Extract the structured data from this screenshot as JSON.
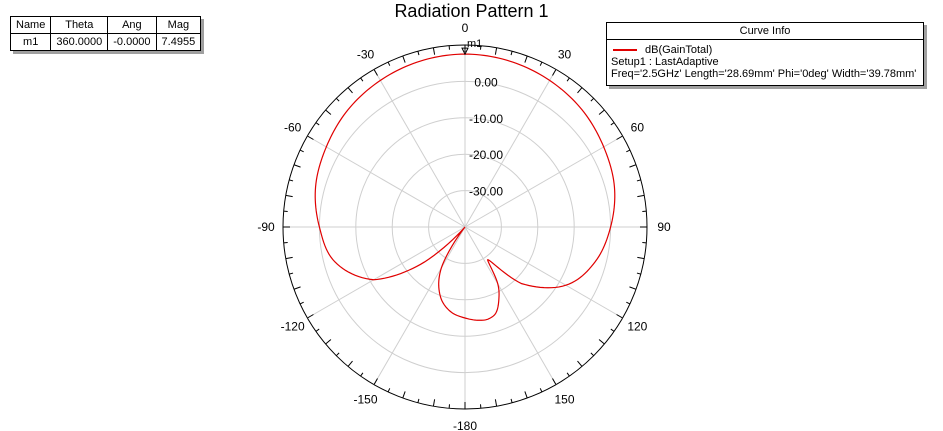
{
  "title": "Radiation Pattern 1",
  "marker_table": {
    "headers": [
      "Name",
      "Theta",
      "Ang",
      "Mag"
    ],
    "rows": [
      [
        "m1",
        "360.0000",
        "-0.0000",
        "7.4955"
      ]
    ]
  },
  "marker_label": "m1",
  "legend": {
    "header": "Curve Info",
    "trace_name": "dB(GainTotal)",
    "setup": "Setup1 : LastAdaptive",
    "params": "Freq='2.5GHz' Length='28.69mm' Phi='0deg' Width='39.78mm'"
  },
  "chart_data": {
    "type": "line",
    "coordinate_system": "polar",
    "title": "Radiation Pattern 1",
    "radial_range_db": [
      -40,
      10
    ],
    "radial_ticks": [
      0,
      -10,
      -20,
      -30
    ],
    "radial_tick_labels": [
      "0.00",
      "-10.00",
      "-20.00",
      "-30.00"
    ],
    "angular_ticks": [
      0,
      30,
      60,
      90,
      120,
      150,
      180,
      -150,
      -120,
      -90,
      -60,
      -30
    ],
    "angular_tick_labels": [
      "0",
      "30",
      "60",
      "90",
      "120",
      "150",
      "-180",
      "-150",
      "-120",
      "-90",
      "-60",
      "-30"
    ],
    "grid": true,
    "legend_position": "top-right",
    "series": [
      {
        "name": "dB(GainTotal)",
        "color": "#e00000",
        "theta_deg": [
          0,
          15,
          30,
          45,
          60,
          75,
          90,
          105,
          120,
          135,
          145,
          150,
          155,
          160,
          165,
          170,
          180,
          -170,
          -160,
          -150,
          -140,
          -130,
          -120,
          -105,
          -90,
          -75,
          -60,
          -45,
          -30,
          -15
        ],
        "gain_db": [
          7.5,
          7.2,
          6.5,
          5.5,
          4.0,
          2.5,
          0.0,
          -3.0,
          -8.0,
          -18.0,
          -29.0,
          -22.0,
          -18.0,
          -15.0,
          -14.0,
          -14.0,
          -15.0,
          -16.5,
          -20.0,
          -27.0,
          -40.0,
          -24.0,
          -11.0,
          -3.0,
          0.0,
          2.5,
          4.0,
          5.5,
          6.5,
          7.2
        ]
      }
    ]
  }
}
